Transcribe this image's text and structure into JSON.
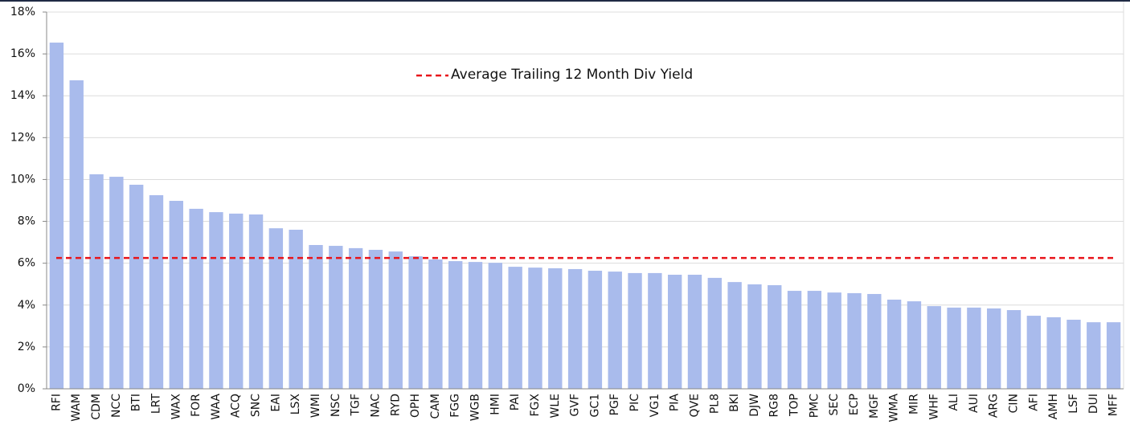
{
  "chart_data": {
    "type": "bar",
    "categories": [
      "RFI",
      "WAM",
      "CDM",
      "NCC",
      "BTI",
      "LRT",
      "WAX",
      "FOR",
      "WAA",
      "ACQ",
      "SNC",
      "EAI",
      "LSX",
      "WMI",
      "NSC",
      "TGF",
      "NAC",
      "RYD",
      "OPH",
      "CAM",
      "FGG",
      "WGB",
      "HMI",
      "PAI",
      "FGX",
      "WLE",
      "GVF",
      "GC1",
      "PGF",
      "PIC",
      "VG1",
      "PIA",
      "QVE",
      "PL8",
      "BKI",
      "DJW",
      "RG8",
      "TOP",
      "PMC",
      "SEC",
      "ECP",
      "MGF",
      "WMA",
      "MIR",
      "WHF",
      "ALI",
      "AUI",
      "ARG",
      "CIN",
      "AFI",
      "AMH",
      "LSF",
      "DUI",
      "MFF"
    ],
    "values": [
      16.54,
      14.74,
      10.25,
      10.13,
      9.75,
      9.25,
      8.98,
      8.6,
      8.44,
      8.37,
      8.33,
      7.67,
      7.6,
      6.87,
      6.83,
      6.72,
      6.64,
      6.56,
      6.33,
      6.18,
      6.1,
      6.06,
      6.02,
      5.83,
      5.79,
      5.76,
      5.72,
      5.64,
      5.6,
      5.53,
      5.53,
      5.45,
      5.45,
      5.3,
      5.1,
      4.99,
      4.95,
      4.68,
      4.68,
      4.6,
      4.57,
      4.53,
      4.26,
      4.18,
      3.95,
      3.88,
      3.88,
      3.84,
      3.76,
      3.49,
      3.42,
      3.3,
      3.18,
      3.18
    ],
    "color": "#a9bbec",
    "average": {
      "name": "Average Trailing 12 Month Div Yield",
      "value": 6.25,
      "color": "#e8141a"
    },
    "ylim": [
      0,
      18
    ],
    "yticks": [
      {
        "value": 0,
        "label": "0%"
      },
      {
        "value": 2,
        "label": "2%"
      },
      {
        "value": 4,
        "label": "4%"
      },
      {
        "value": 6,
        "label": "6%"
      },
      {
        "value": 8,
        "label": "8%"
      },
      {
        "value": 10,
        "label": "10%"
      },
      {
        "value": 12,
        "label": "12%"
      },
      {
        "value": 14,
        "label": "14%"
      },
      {
        "value": 16,
        "label": "16%"
      },
      {
        "value": 18,
        "label": "18%"
      }
    ],
    "grid": true
  }
}
